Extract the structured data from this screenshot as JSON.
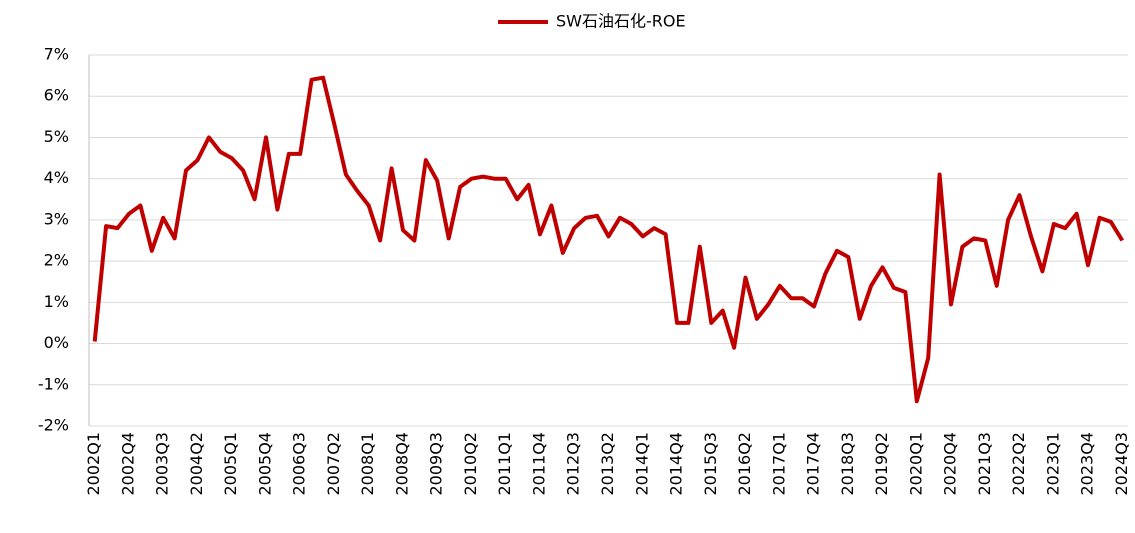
{
  "chart_data": {
    "type": "line",
    "categories": [
      "2002Q1",
      null,
      null,
      "2002Q4",
      null,
      null,
      "2003Q3",
      null,
      null,
      "2004Q2",
      null,
      null,
      "2005Q1",
      null,
      null,
      "2005Q4",
      null,
      null,
      "2006Q3",
      null,
      null,
      "2007Q2",
      null,
      null,
      "2008Q1",
      null,
      null,
      "2008Q4",
      null,
      null,
      "2009Q3",
      null,
      null,
      "2010Q2",
      null,
      null,
      "2011Q1",
      null,
      null,
      "2011Q4",
      null,
      null,
      "2012Q3",
      null,
      null,
      "2013Q2",
      null,
      null,
      "2014Q1",
      null,
      null,
      "2014Q4",
      null,
      null,
      "2015Q3",
      null,
      null,
      "2016Q2",
      null,
      null,
      "2017Q1",
      null,
      null,
      "2017Q4",
      null,
      null,
      "2018Q3",
      null,
      null,
      "2019Q2",
      null,
      null,
      "2020Q1",
      null,
      null,
      "2020Q4",
      null,
      null,
      "2021Q3",
      null,
      null,
      "2022Q2",
      null,
      null,
      "2023Q1",
      null,
      null,
      "2023Q4",
      null,
      null,
      "2024Q3"
    ],
    "series": [
      {
        "name": "SW石油石化-ROE",
        "color": "#c00000",
        "values": [
          0.05,
          2.85,
          2.8,
          3.15,
          3.35,
          2.25,
          3.05,
          2.55,
          4.2,
          4.45,
          5.0,
          4.65,
          4.5,
          4.2,
          3.5,
          5.0,
          3.25,
          4.6,
          4.6,
          6.4,
          6.45,
          5.3,
          4.1,
          3.7,
          3.35,
          2.5,
          4.25,
          2.75,
          2.5,
          4.45,
          3.95,
          2.55,
          3.8,
          4.0,
          4.05,
          4.0,
          4.0,
          3.5,
          3.85,
          2.65,
          3.35,
          2.2,
          2.8,
          3.05,
          3.1,
          2.6,
          3.05,
          2.9,
          2.6,
          2.8,
          2.65,
          0.5,
          0.5,
          2.35,
          0.5,
          0.8,
          -0.1,
          1.6,
          0.6,
          0.95,
          1.4,
          1.1,
          1.1,
          0.9,
          1.7,
          2.25,
          2.1,
          0.6,
          1.4,
          1.85,
          1.35,
          1.25,
          -1.4,
          -0.35,
          4.1,
          0.95,
          2.35,
          2.55,
          2.5,
          1.4,
          3.0,
          3.6,
          2.6,
          1.75,
          2.9,
          2.8,
          3.15,
          1.9,
          3.05,
          2.95,
          2.5
        ]
      }
    ],
    "ylim": [
      -2,
      7
    ],
    "yticks": [
      {
        "value": -2,
        "label": "-2%"
      },
      {
        "value": -1,
        "label": "-1%"
      },
      {
        "value": 0,
        "label": "0%"
      },
      {
        "value": 1,
        "label": "1%"
      },
      {
        "value": 2,
        "label": "2%"
      },
      {
        "value": 3,
        "label": "3%"
      },
      {
        "value": 4,
        "label": "4%"
      },
      {
        "value": 5,
        "label": "5%"
      },
      {
        "value": 6,
        "label": "6%"
      },
      {
        "value": 7,
        "label": "7%"
      }
    ],
    "grid": true,
    "legend": "top"
  }
}
